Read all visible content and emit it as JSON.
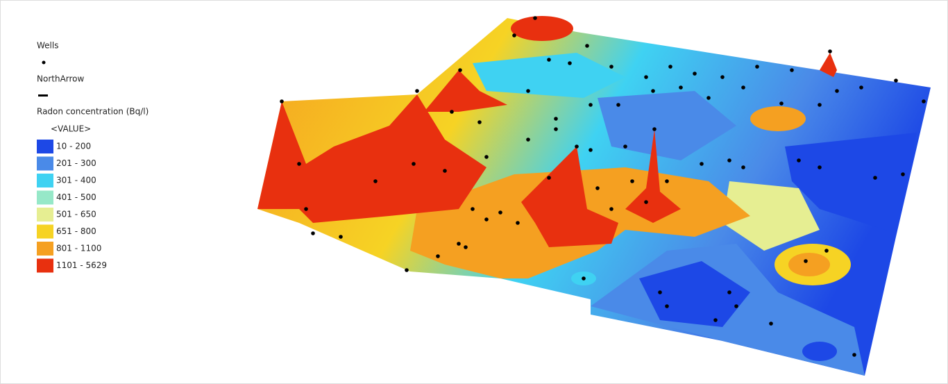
{
  "legend": {
    "layers": [
      {
        "name": "Wells"
      },
      {
        "name": "NorthArrow"
      },
      {
        "name": "Radon concentration (Bq/l)",
        "field": "<VALUE>",
        "classes": [
          {
            "label": "10 - 200",
            "color": "#1d48e6"
          },
          {
            "label": "201 - 300",
            "color": "#4a8ae8"
          },
          {
            "label": "301 - 400",
            "color": "#3fd2f2"
          },
          {
            "label": "401 - 500",
            "color": "#96e8c8"
          },
          {
            "label": "501 - 650",
            "color": "#e6ee92"
          },
          {
            "label": "651 - 800",
            "color": "#f6d324"
          },
          {
            "label": "801 - 1100",
            "color": "#f5a021"
          },
          {
            "label": "1101 - 5629",
            "color": "#e8300f"
          }
        ]
      }
    ]
  }
}
